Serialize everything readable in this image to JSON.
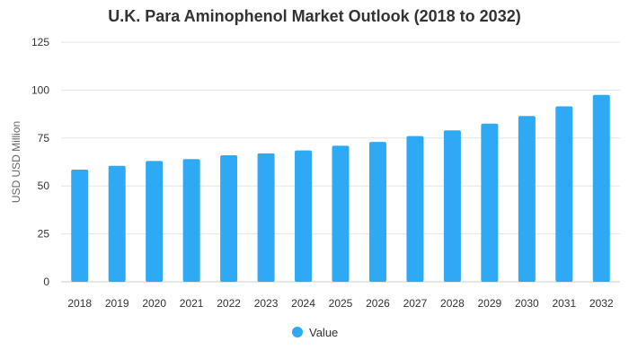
{
  "chart_data": {
    "type": "bar",
    "title": "U.K. Para Aminophenol Market Outlook (2018 to 2032)",
    "xlabel": "",
    "ylabel": "USD USD Million",
    "categories": [
      "2018",
      "2019",
      "2020",
      "2021",
      "2022",
      "2023",
      "2024",
      "2025",
      "2026",
      "2027",
      "2028",
      "2029",
      "2030",
      "2031",
      "2032"
    ],
    "series": [
      {
        "name": "Value",
        "values": [
          58.5,
          60.5,
          63,
          64,
          66,
          67,
          68.5,
          71,
          73,
          76,
          79,
          82.5,
          86.5,
          91.5,
          97.5
        ]
      }
    ],
    "ylim": [
      0,
      125
    ],
    "yticks": [
      0,
      25,
      50,
      75,
      100,
      125
    ],
    "grid": true,
    "legend_position": "bottom",
    "colors": {
      "bar": "#2eaaf5",
      "grid": "#e6e6e6",
      "axis": "#cccccc"
    }
  }
}
